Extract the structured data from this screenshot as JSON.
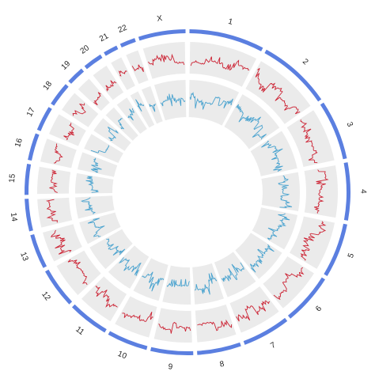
{
  "chromosomes": [
    "1",
    "2",
    "3",
    "4",
    "5",
    "6",
    "7",
    "8",
    "9",
    "10",
    "11",
    "12",
    "13",
    "14",
    "15",
    "16",
    "17",
    "18",
    "19",
    "20",
    "21",
    "22",
    "X"
  ]
}
